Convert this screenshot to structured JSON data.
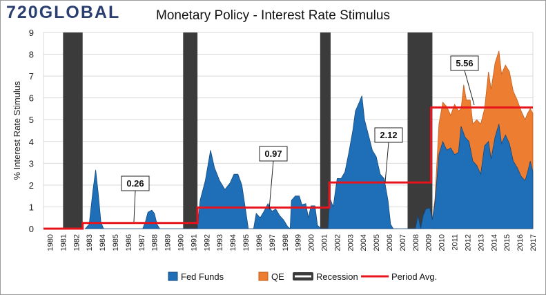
{
  "logo": {
    "text": "720GLOBAL"
  },
  "chart_data": {
    "type": "area",
    "title": "Monetary Policy - Interest Rate Stimulus",
    "xlabel": "",
    "ylabel": "% Interest Rate Stimulus",
    "ylim": [
      0,
      9
    ],
    "xlim": [
      1980,
      2017.5
    ],
    "y_ticks": [
      0,
      1,
      2,
      3,
      4,
      5,
      6,
      7,
      8,
      9
    ],
    "x_ticks": [
      "1980",
      "1981",
      "1982",
      "1983",
      "1984",
      "1985",
      "1986",
      "1987",
      "1988",
      "1989",
      "1990",
      "1991",
      "1992",
      "1993",
      "1994",
      "1995",
      "1996",
      "1997",
      "1998",
      "1999",
      "2000",
      "2001",
      "2002",
      "2003",
      "2004",
      "2005",
      "2006",
      "2007",
      "2008",
      "2009",
      "2010",
      "2011",
      "2012",
      "2013",
      "2014",
      "2015",
      "2016",
      "2017"
    ],
    "grid": true,
    "legend_position": "bottom",
    "legend": [
      "Fed Funds",
      "QE",
      "Recession",
      "Period Avg."
    ],
    "colors": {
      "fed_funds": "#1f6fb8",
      "qe": "#ed7d31",
      "recession": "#3b3b3b",
      "period_avg": "#e8141c"
    },
    "recessions": [
      [
        1981.5,
        1983.0
      ],
      [
        1990.7,
        1991.8
      ],
      [
        2001.2,
        2002.0
      ],
      [
        2007.9,
        2009.8
      ]
    ],
    "fed_funds": [
      [
        1983.2,
        0
      ],
      [
        1983.5,
        0.2
      ],
      [
        1983.8,
        1.8
      ],
      [
        1984.0,
        2.7
      ],
      [
        1984.2,
        1.6
      ],
      [
        1984.4,
        0.3
      ],
      [
        1984.6,
        0
      ],
      [
        1987.6,
        0
      ],
      [
        1987.8,
        0.3
      ],
      [
        1988.0,
        0.75
      ],
      [
        1988.3,
        0.85
      ],
      [
        1988.5,
        0.7
      ],
      [
        1988.7,
        0.2
      ],
      [
        1988.9,
        0
      ],
      [
        1991.8,
        0
      ],
      [
        1992.0,
        1.3
      ],
      [
        1992.4,
        2.2
      ],
      [
        1992.8,
        3.6
      ],
      [
        1993.1,
        2.8
      ],
      [
        1993.5,
        2.2
      ],
      [
        1993.9,
        1.8
      ],
      [
        1994.3,
        2.1
      ],
      [
        1994.6,
        2.5
      ],
      [
        1994.9,
        2.5
      ],
      [
        1995.2,
        2.0
      ],
      [
        1995.5,
        0.8
      ],
      [
        1995.7,
        0
      ],
      [
        1996.1,
        0
      ],
      [
        1996.3,
        0.7
      ],
      [
        1996.6,
        0.5
      ],
      [
        1996.9,
        0.8
      ],
      [
        1997.2,
        1.15
      ],
      [
        1997.5,
        0.8
      ],
      [
        1997.8,
        0.9
      ],
      [
        1998.1,
        0.6
      ],
      [
        1998.4,
        0.4
      ],
      [
        1998.7,
        0.1
      ],
      [
        1998.9,
        0
      ],
      [
        1999.0,
        1.3
      ],
      [
        1999.3,
        1.5
      ],
      [
        1999.6,
        1.5
      ],
      [
        1999.8,
        1.1
      ],
      [
        2000.1,
        1.15
      ],
      [
        2000.3,
        0.5
      ],
      [
        2000.5,
        1.05
      ],
      [
        2000.8,
        1.05
      ],
      [
        2001.0,
        0.15
      ],
      [
        2001.3,
        0
      ],
      [
        2001.5,
        0
      ],
      [
        2001.8,
        0
      ],
      [
        2001.95,
        1.4
      ],
      [
        2002.2,
        1.0
      ],
      [
        2002.5,
        2.3
      ],
      [
        2002.8,
        2.3
      ],
      [
        2003.1,
        2.6
      ],
      [
        2003.4,
        3.5
      ],
      [
        2003.7,
        4.5
      ],
      [
        2003.9,
        5.4
      ],
      [
        2004.2,
        5.8
      ],
      [
        2004.4,
        6.1
      ],
      [
        2004.6,
        5.0
      ],
      [
        2004.9,
        4.3
      ],
      [
        2005.2,
        3.6
      ],
      [
        2005.5,
        3.3
      ],
      [
        2005.8,
        2.5
      ],
      [
        2006.1,
        2.3
      ],
      [
        2006.4,
        1.3
      ],
      [
        2006.6,
        0.2
      ],
      [
        2006.8,
        0
      ],
      [
        2008.5,
        0
      ],
      [
        2008.7,
        0.6
      ],
      [
        2008.9,
        0
      ],
      [
        2009.1,
        0.6
      ],
      [
        2009.3,
        0.9
      ],
      [
        2009.6,
        0.95
      ],
      [
        2009.8,
        0.4
      ],
      [
        2010.0,
        1.2
      ],
      [
        2010.3,
        3.4
      ],
      [
        2010.6,
        4.0
      ],
      [
        2010.9,
        3.6
      ],
      [
        2011.2,
        3.7
      ],
      [
        2011.5,
        3.4
      ],
      [
        2011.8,
        3.5
      ],
      [
        2012.0,
        4.7
      ],
      [
        2012.3,
        4.2
      ],
      [
        2012.6,
        4.0
      ],
      [
        2012.9,
        3.1
      ],
      [
        2013.2,
        2.9
      ],
      [
        2013.5,
        2.5
      ],
      [
        2013.8,
        3.8
      ],
      [
        2014.1,
        4.0
      ],
      [
        2014.3,
        3.2
      ],
      [
        2014.6,
        4.2
      ],
      [
        2014.9,
        4.8
      ],
      [
        2015.1,
        3.9
      ],
      [
        2015.4,
        4.3
      ],
      [
        2015.7,
        3.9
      ],
      [
        2016.0,
        3.1
      ],
      [
        2016.3,
        2.8
      ],
      [
        2016.6,
        2.4
      ],
      [
        2016.9,
        2.2
      ],
      [
        2017.1,
        2.6
      ],
      [
        2017.3,
        3.1
      ],
      [
        2017.5,
        2.6
      ]
    ],
    "total_stimulus": [
      [
        2009.8,
        0.4
      ],
      [
        2010.0,
        1.4
      ],
      [
        2010.3,
        4.8
      ],
      [
        2010.6,
        5.8
      ],
      [
        2010.9,
        5.6
      ],
      [
        2011.2,
        5.2
      ],
      [
        2011.5,
        5.7
      ],
      [
        2011.8,
        5.4
      ],
      [
        2012.0,
        5.5
      ],
      [
        2012.2,
        6.6
      ],
      [
        2012.4,
        5.9
      ],
      [
        2012.7,
        5.9
      ],
      [
        2012.9,
        4.8
      ],
      [
        2013.2,
        5.0
      ],
      [
        2013.5,
        4.8
      ],
      [
        2013.8,
        5.5
      ],
      [
        2014.1,
        7.2
      ],
      [
        2014.3,
        6.4
      ],
      [
        2014.6,
        7.6
      ],
      [
        2014.9,
        8.15
      ],
      [
        2015.1,
        7.1
      ],
      [
        2015.4,
        7.5
      ],
      [
        2015.7,
        7.2
      ],
      [
        2016.0,
        6.3
      ],
      [
        2016.3,
        5.9
      ],
      [
        2016.6,
        5.4
      ],
      [
        2016.9,
        5.0
      ],
      [
        2017.1,
        5.3
      ],
      [
        2017.3,
        5.5
      ],
      [
        2017.5,
        5.3
      ]
    ],
    "period_avg": [
      [
        1980,
        0
      ],
      [
        1983.0,
        0
      ],
      [
        1983.0,
        0.26
      ],
      [
        1991.8,
        0.26
      ],
      [
        1991.8,
        0.97
      ],
      [
        2001.9,
        0.97
      ],
      [
        2001.9,
        2.12
      ],
      [
        2009.7,
        2.12
      ],
      [
        2009.7,
        5.56
      ],
      [
        2017.5,
        5.56
      ]
    ],
    "annotations": [
      {
        "label": "0.26",
        "x": 1987.5,
        "y": 0.26
      },
      {
        "label": "0.97",
        "x": 1997.8,
        "y": 0.97
      },
      {
        "label": "2.12",
        "x": 2006.1,
        "y": 2.12
      },
      {
        "label": "5.56",
        "x": 2013.6,
        "y": 5.56
      }
    ]
  }
}
